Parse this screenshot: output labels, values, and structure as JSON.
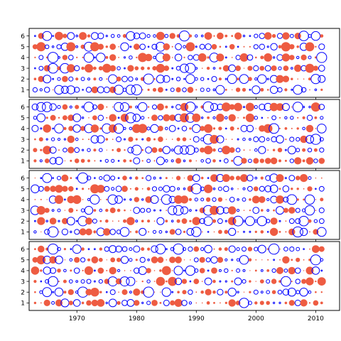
{
  "chart_data": {
    "type": "scatter",
    "title": "",
    "xlabel": "",
    "ylabel": "",
    "xlim": [
      1962,
      2014
    ],
    "ylim": [
      0.3,
      6.7
    ],
    "x_ticks": [
      1970,
      1980,
      1990,
      2000,
      2010
    ],
    "y_ticks": [
      1,
      2,
      3,
      4,
      5,
      6
    ],
    "x_range": [
      1963,
      2011
    ],
    "legend": "none",
    "grid": false,
    "panels": 4,
    "encoding": {
      "marker_area": "magnitude of value",
      "filled_red_circle": "positive value",
      "open_blue_circle": "negative value"
    },
    "colors": {
      "positive": "#ee5c42",
      "negative": "#0000ff",
      "axes": "#000000",
      "background": "#ffffff"
    },
    "shared_x_axis": true
  }
}
